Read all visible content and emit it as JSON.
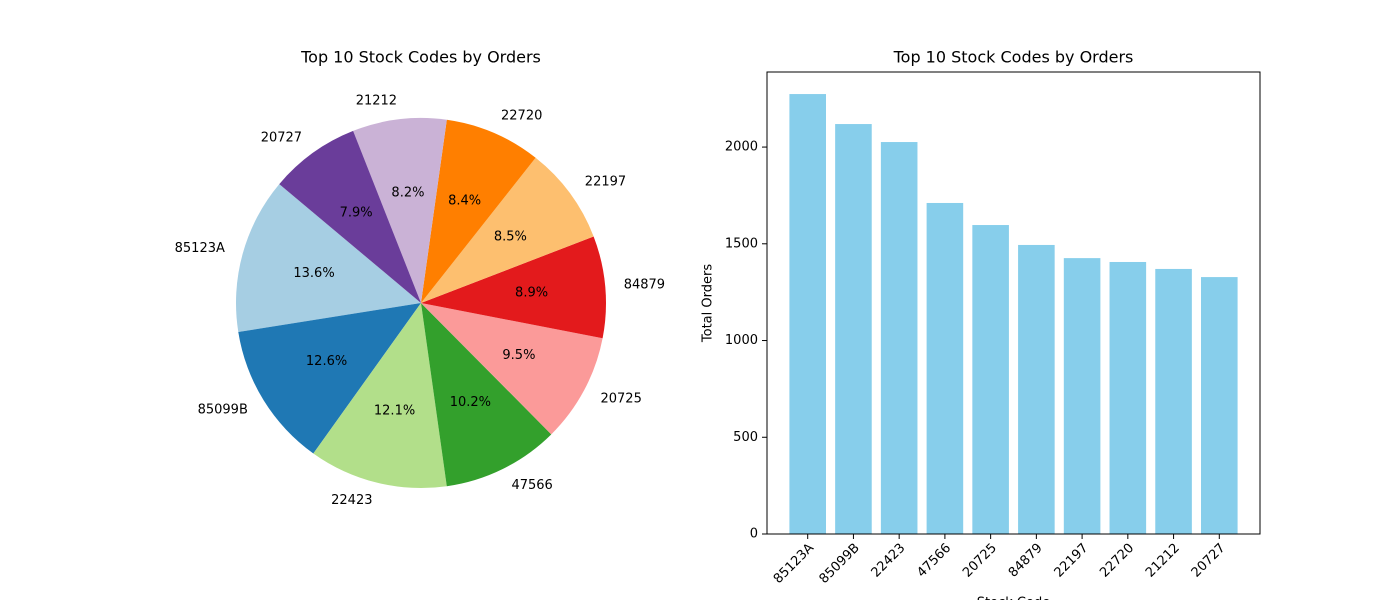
{
  "chart_data": [
    {
      "type": "pie",
      "title": "Top 10 Stock Codes by Orders",
      "categories": [
        "85123A",
        "85099B",
        "22423",
        "47566",
        "20725",
        "84879",
        "22197",
        "22720",
        "21212",
        "20727"
      ],
      "values": [
        13.6,
        12.6,
        12.1,
        10.2,
        9.5,
        8.9,
        8.5,
        8.4,
        8.2,
        7.9
      ],
      "value_labels": [
        "13.6%",
        "12.6%",
        "12.1%",
        "10.2%",
        "9.5%",
        "8.9%",
        "8.5%",
        "8.4%",
        "8.2%",
        "7.9%"
      ],
      "colors": [
        "#a6cee3",
        "#1f78b4",
        "#b2df8a",
        "#33a02c",
        "#fb9a99",
        "#e31a1c",
        "#fdbf6f",
        "#ff7f00",
        "#cab2d6",
        "#6a3d9a"
      ],
      "start_angle": 140
    },
    {
      "type": "bar",
      "title": "Top 10 Stock Codes by Orders",
      "x_label": "Stock Code",
      "y_label": "Total Orders",
      "categories": [
        "85123A",
        "85099B",
        "22423",
        "47566",
        "20725",
        "84879",
        "22197",
        "22720",
        "21212",
        "20727"
      ],
      "values": [
        2274,
        2119,
        2026,
        1711,
        1597,
        1494,
        1426,
        1406,
        1370,
        1328
      ],
      "color": "#87ceeb",
      "ylim": [
        0,
        2388
      ],
      "yticks": [
        0,
        500,
        1000,
        1500,
        2000
      ]
    }
  ]
}
